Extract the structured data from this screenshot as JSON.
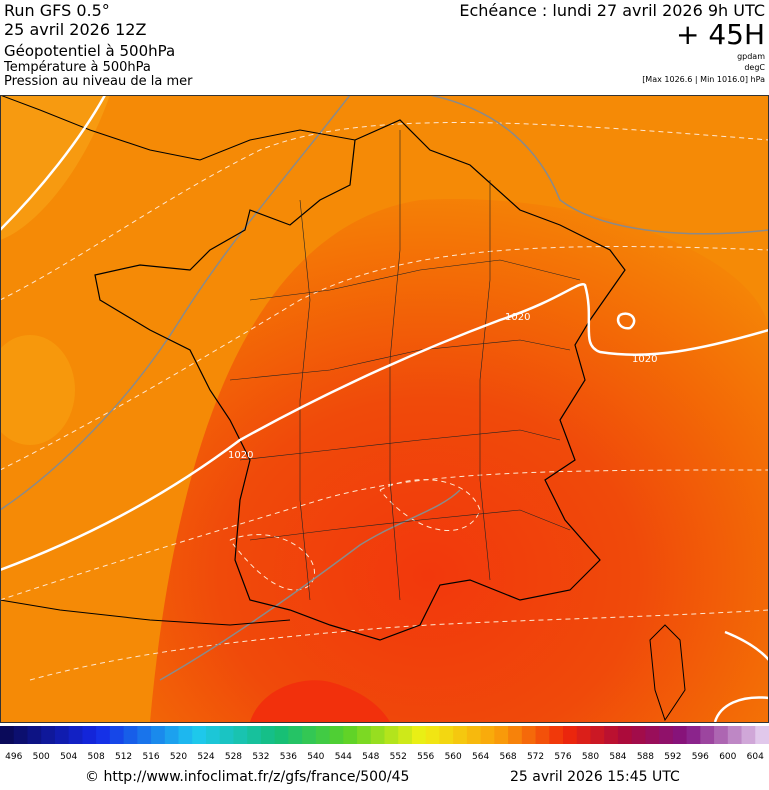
{
  "header": {
    "run": "Run GFS 0.5°",
    "date": "25 avril 2026 12Z",
    "field1": "Géopotentiel à 500hPa",
    "field2": "Température à 500hPa",
    "field3": "Pression au niveau de la mer",
    "echeance": "Echéance : lundi 27 avril 2026 9h UTC",
    "lead": "+ 45H",
    "unit1": "gpdam",
    "unit2": "degC",
    "pressure_range": "[Max 1026.6 | Min 1016.0] hPa"
  },
  "map": {
    "isobar_labels": [
      "1020",
      "1020",
      "1020"
    ]
  },
  "scale": {
    "labels": [
      "496",
      "500",
      "504",
      "508",
      "512",
      "516",
      "520",
      "524",
      "528",
      "532",
      "536",
      "540",
      "544",
      "548",
      "552",
      "556",
      "560",
      "564",
      "568",
      "572",
      "576",
      "580",
      "584",
      "588",
      "592",
      "596",
      "600",
      "604"
    ]
  },
  "footer": {
    "url": "© http://www.infoclimat.fr/z/gfs/france/500/45",
    "timestamp": "25 avril 2026 15:45 UTC"
  }
}
